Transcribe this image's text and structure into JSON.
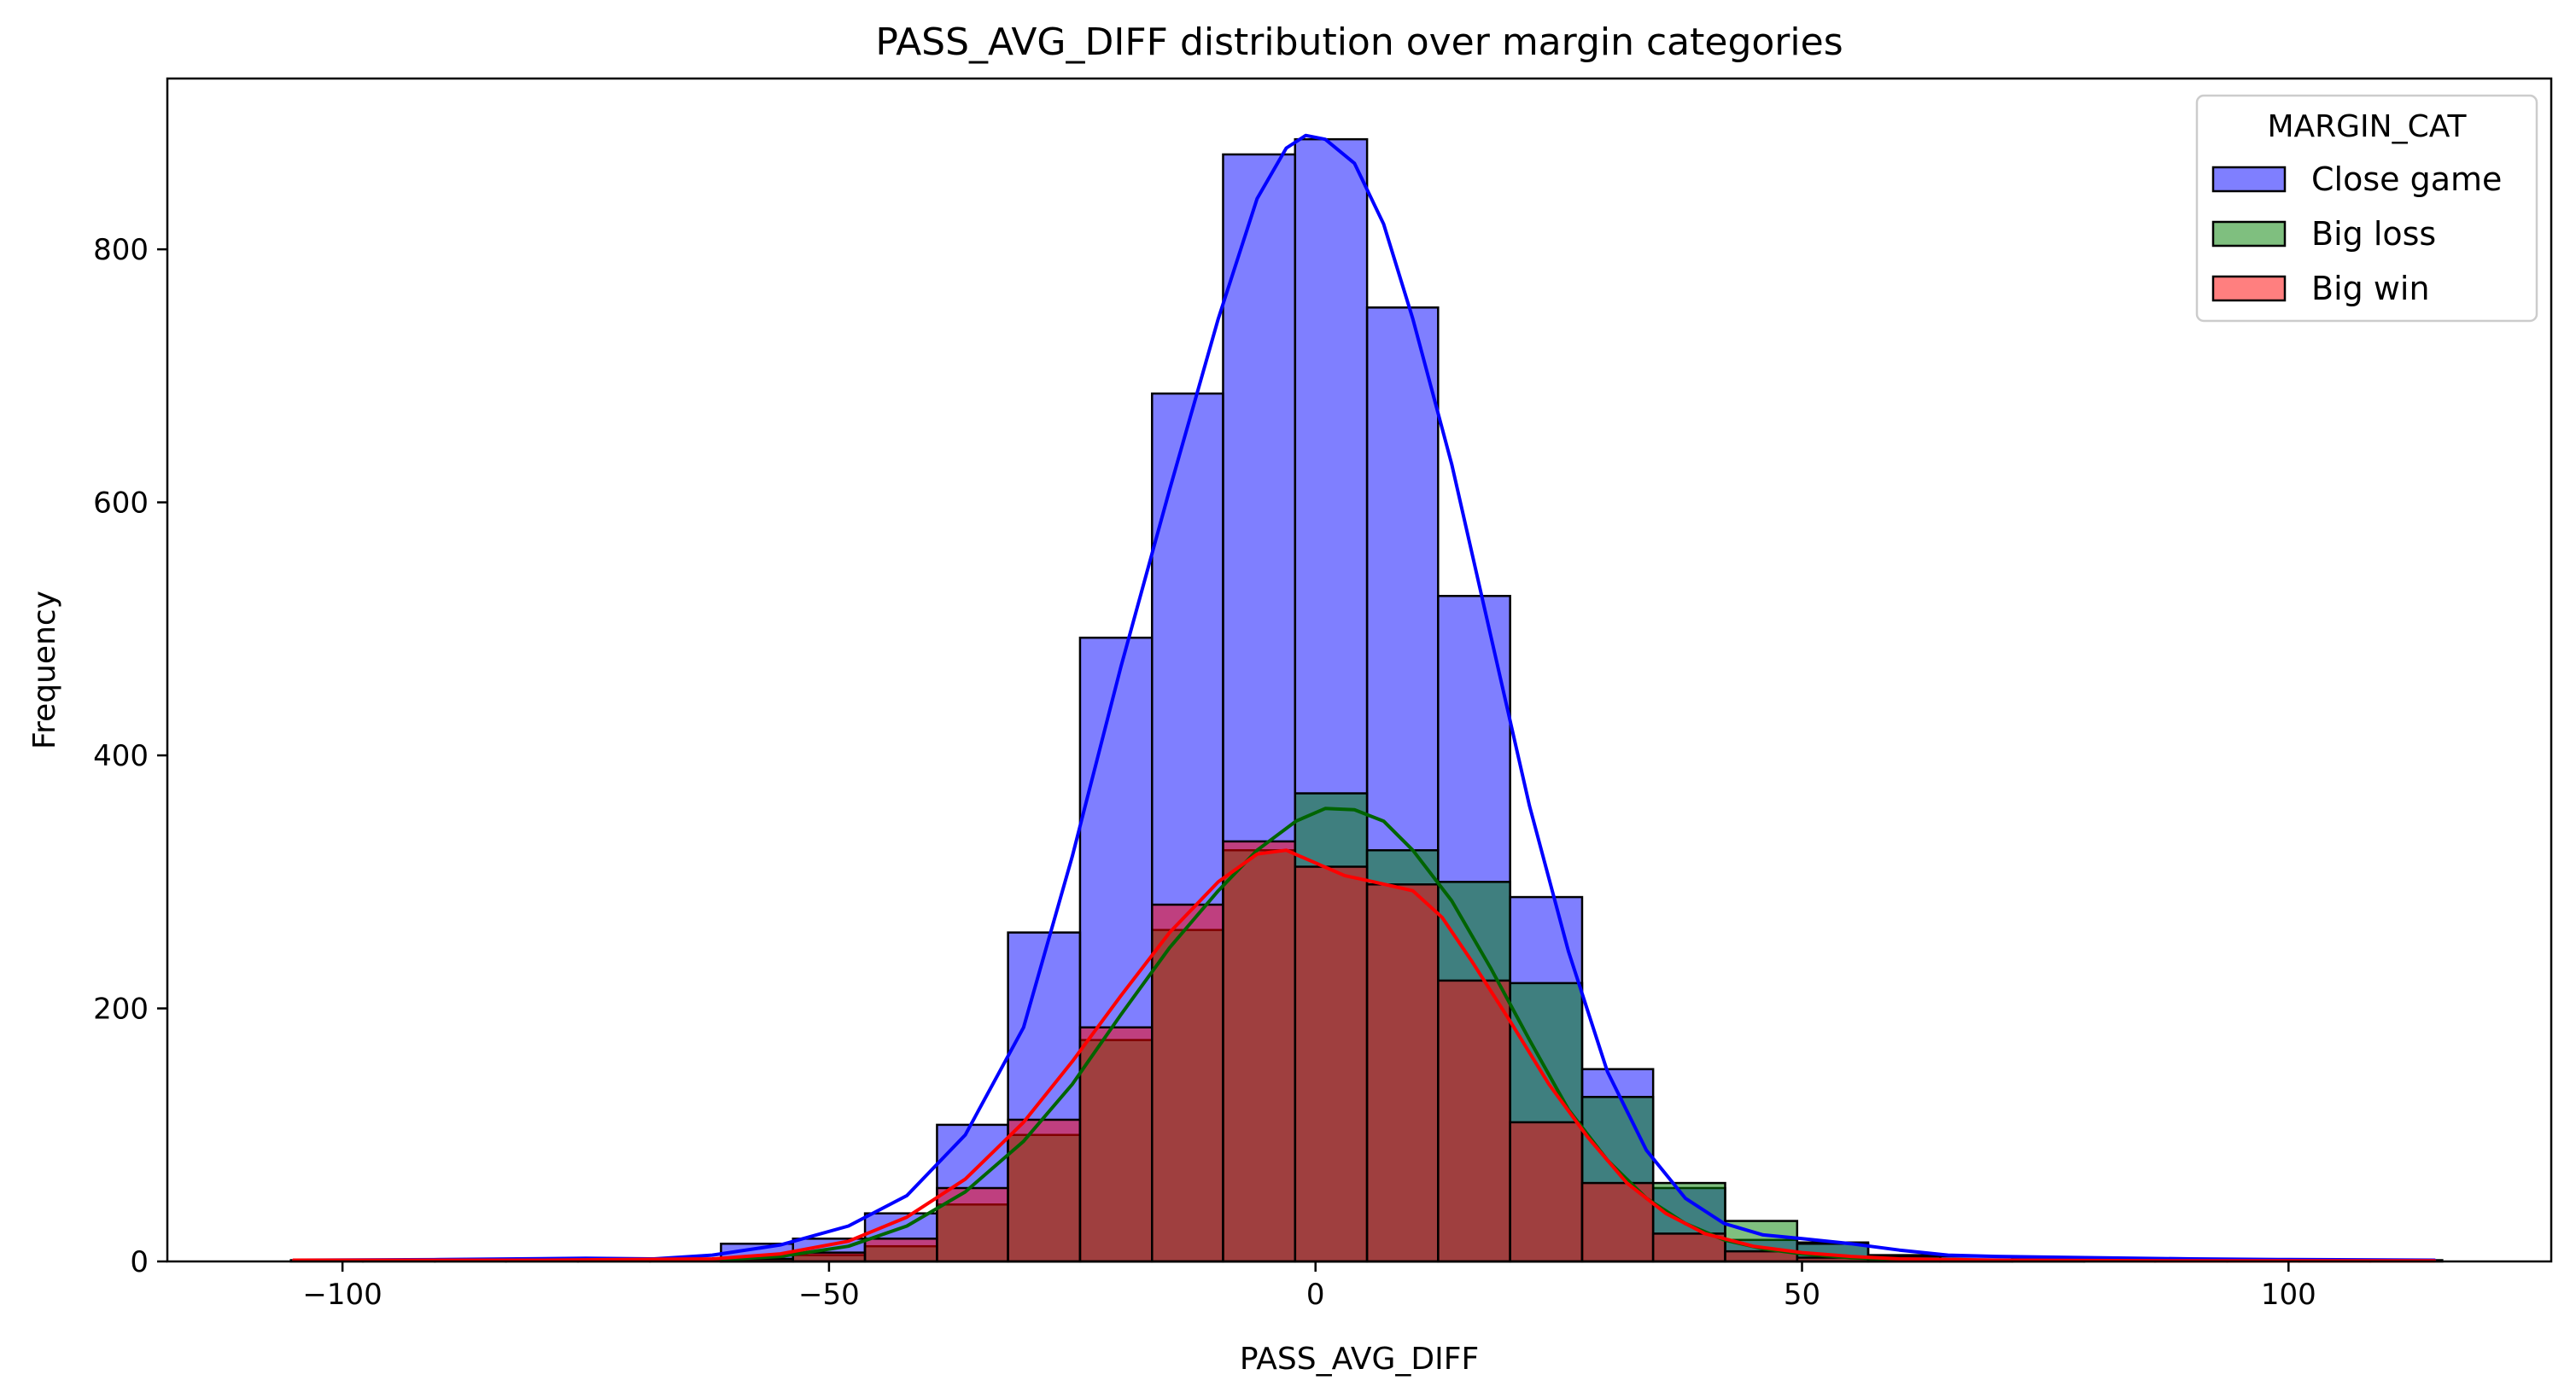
{
  "chart_data": {
    "type": "histogram",
    "title": "PASS_AVG_DIFF distribution over margin categories",
    "xlabel": "PASS_AVG_DIFF",
    "ylabel": "Frequency",
    "xlim": [
      -118,
      127
    ],
    "ylim": [
      0,
      935
    ],
    "xticks": [
      -100,
      -50,
      0,
      50,
      100
    ],
    "xtick_labels": [
      "−100",
      "−50",
      "0",
      "50",
      "100"
    ],
    "yticks": [
      0,
      200,
      400,
      600,
      800
    ],
    "ytick_labels": [
      "0",
      "200",
      "400",
      "600",
      "800"
    ],
    "grid": false,
    "legend": {
      "title": "MARGIN_CAT",
      "placement": "top-right"
    },
    "bin_edges": [
      -105.3,
      -97.9,
      -90.5,
      -83.2,
      -75.8,
      -68.4,
      -61.1,
      -53.7,
      -46.3,
      -38.9,
      -31.6,
      -24.2,
      -16.8,
      -9.5,
      -2.1,
      5.3,
      12.6,
      20.0,
      27.4,
      34.7,
      42.1,
      49.5,
      56.8,
      64.2,
      71.6,
      79.0,
      86.3,
      93.7,
      101.1,
      108.4,
      115.8
    ],
    "series": [
      {
        "name": "Close game",
        "color": "#0000ff",
        "kde_color": "#0000ff",
        "values": [
          1,
          1,
          1,
          2,
          2,
          2,
          14,
          18,
          38,
          108,
          260,
          493,
          686,
          875,
          887,
          754,
          526,
          288,
          152,
          58,
          17,
          15,
          5,
          4,
          3,
          2,
          1,
          1,
          1,
          1
        ],
        "kde": [
          [
            -105,
            1
          ],
          [
            -90,
            1.5
          ],
          [
            -75,
            2.5
          ],
          [
            -68,
            2
          ],
          [
            -62,
            5
          ],
          [
            -55,
            13
          ],
          [
            -48,
            28
          ],
          [
            -42,
            52
          ],
          [
            -36,
            100
          ],
          [
            -30,
            185
          ],
          [
            -25,
            320
          ],
          [
            -20,
            470
          ],
          [
            -15,
            610
          ],
          [
            -10,
            745
          ],
          [
            -6,
            840
          ],
          [
            -3,
            880
          ],
          [
            -1,
            890
          ],
          [
            1,
            887
          ],
          [
            4,
            868
          ],
          [
            7,
            820
          ],
          [
            10,
            745
          ],
          [
            14,
            630
          ],
          [
            18,
            495
          ],
          [
            22,
            360
          ],
          [
            26,
            245
          ],
          [
            30,
            150
          ],
          [
            34,
            88
          ],
          [
            38,
            50
          ],
          [
            42,
            30
          ],
          [
            46,
            21
          ],
          [
            50,
            18
          ],
          [
            55,
            14
          ],
          [
            60,
            9
          ],
          [
            65,
            5
          ],
          [
            70,
            4
          ],
          [
            80,
            3
          ],
          [
            90,
            2
          ],
          [
            100,
            1.5
          ],
          [
            115,
            1
          ]
        ]
      },
      {
        "name": "Big loss",
        "color": "#008000",
        "kde_color": "#006400",
        "values": [
          0,
          0,
          0,
          0,
          0,
          0,
          2,
          5,
          12,
          45,
          100,
          175,
          262,
          325,
          370,
          325,
          300,
          220,
          130,
          62,
          32,
          14,
          4,
          1,
          1,
          0,
          0,
          0,
          0,
          0
        ],
        "kde": [
          [
            -62,
            1
          ],
          [
            -55,
            4
          ],
          [
            -48,
            12
          ],
          [
            -42,
            28
          ],
          [
            -36,
            55
          ],
          [
            -30,
            95
          ],
          [
            -25,
            140
          ],
          [
            -20,
            195
          ],
          [
            -15,
            248
          ],
          [
            -10,
            293
          ],
          [
            -6,
            325
          ],
          [
            -2,
            348
          ],
          [
            1,
            358
          ],
          [
            4,
            357
          ],
          [
            7,
            348
          ],
          [
            10,
            325
          ],
          [
            14,
            285
          ],
          [
            18,
            232
          ],
          [
            22,
            175
          ],
          [
            26,
            120
          ],
          [
            30,
            80
          ],
          [
            34,
            50
          ],
          [
            38,
            30
          ],
          [
            42,
            17
          ],
          [
            46,
            10
          ],
          [
            50,
            6
          ],
          [
            55,
            3
          ],
          [
            60,
            1.5
          ],
          [
            65,
            1
          ]
        ]
      },
      {
        "name": "Big win",
        "color": "#ff0000",
        "kde_color": "#ff0000",
        "values": [
          0,
          0,
          0,
          0,
          0,
          0,
          2,
          7,
          18,
          58,
          112,
          185,
          282,
          332,
          312,
          298,
          222,
          110,
          62,
          22,
          8,
          3,
          2,
          1,
          0,
          0,
          0,
          0,
          0,
          0
        ],
        "kde": [
          [
            -105,
            1
          ],
          [
            -80,
            1
          ],
          [
            -62,
            2
          ],
          [
            -55,
            6
          ],
          [
            -48,
            16
          ],
          [
            -42,
            35
          ],
          [
            -36,
            65
          ],
          [
            -30,
            110
          ],
          [
            -25,
            158
          ],
          [
            -20,
            210
          ],
          [
            -15,
            260
          ],
          [
            -10,
            300
          ],
          [
            -6,
            322
          ],
          [
            -3,
            325
          ],
          [
            0,
            315
          ],
          [
            3,
            305
          ],
          [
            6,
            300
          ],
          [
            10,
            293
          ],
          [
            13,
            272
          ],
          [
            16,
            238
          ],
          [
            20,
            190
          ],
          [
            24,
            140
          ],
          [
            28,
            98
          ],
          [
            32,
            62
          ],
          [
            36,
            38
          ],
          [
            40,
            22
          ],
          [
            45,
            12
          ],
          [
            50,
            7
          ],
          [
            55,
            4
          ],
          [
            60,
            2
          ],
          [
            70,
            1
          ],
          [
            90,
            0.5
          ],
          [
            115,
            0.5
          ]
        ]
      }
    ]
  }
}
